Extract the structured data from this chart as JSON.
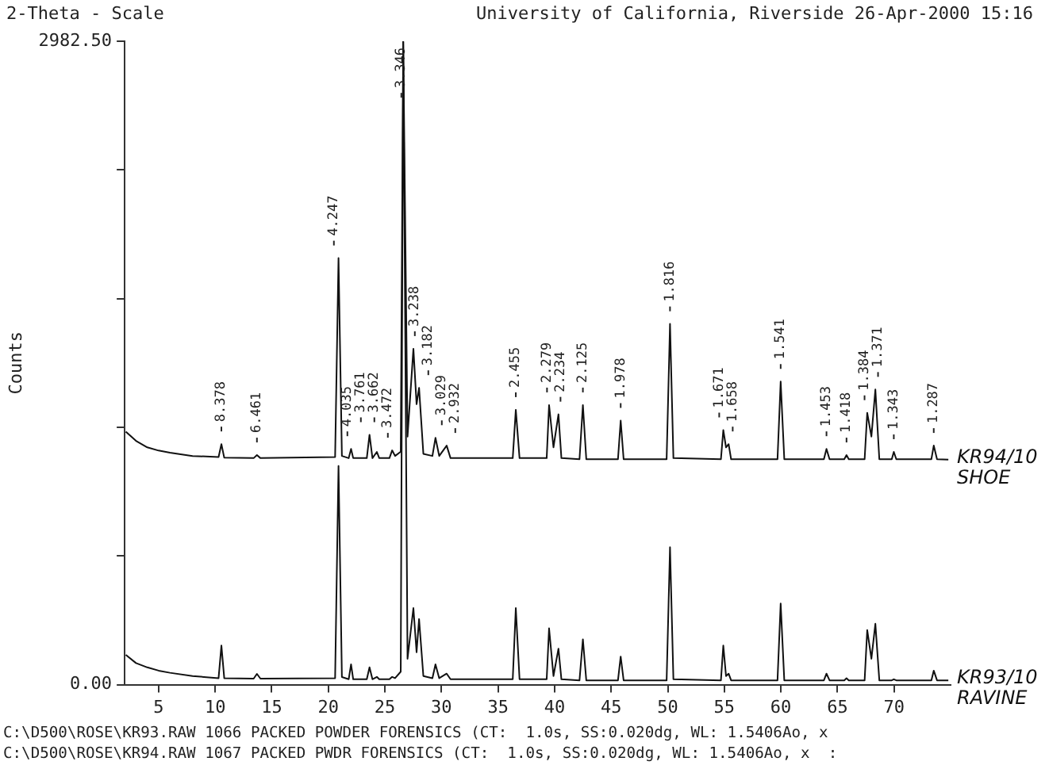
{
  "chart_data": {
    "type": "line",
    "title": "2-Theta - Scale",
    "subtitle": "University of California, Riverside 26-Apr-2000 15:16",
    "ylabel": "Counts",
    "x": [
      2.1,
      3,
      4,
      5,
      6,
      8,
      10.3,
      10.55,
      10.8,
      13.4,
      13.69,
      14,
      20.6,
      20.9,
      21.2,
      21.8,
      22.01,
      22.2,
      23.4,
      23.64,
      23.9,
      24.29,
      24.5,
      25.4,
      25.64,
      25.9,
      26.4,
      26.62,
      27.0,
      27.52,
      27.8,
      28.02,
      28.4,
      29.2,
      29.47,
      29.8,
      30.46,
      30.8,
      36.3,
      36.57,
      36.9,
      39.3,
      39.51,
      39.9,
      40.34,
      40.6,
      42.2,
      42.5,
      42.8,
      45.6,
      45.84,
      46.1,
      49.9,
      50.2,
      50.5,
      54.7,
      54.91,
      55.15,
      55.38,
      55.6,
      59.7,
      59.98,
      60.3,
      63.8,
      64.03,
      64.3,
      65.6,
      65.8,
      66.0,
      67.4,
      67.63,
      68.0,
      68.35,
      68.7,
      69.8,
      69.98,
      70.2,
      73.3,
      73.51,
      73.8,
      74.8
    ],
    "series": [
      {
        "name": "KR94/10 SHOE",
        "color": "#111111",
        "values": [
          1173,
          1130,
          1100,
          1085,
          1075,
          1060,
          1055,
          1115,
          1052,
          1050,
          1064,
          1050,
          1055,
          1977,
          1060,
          1050,
          1093,
          1050,
          1050,
          1158,
          1050,
          1079,
          1050,
          1050,
          1086,
          1060,
          1080,
          2980,
          1150,
          1557,
          1300,
          1376,
          1070,
          1060,
          1144,
          1060,
          1108,
          1050,
          1050,
          1274,
          1050,
          1050,
          1296,
          1100,
          1253,
          1050,
          1045,
          1296,
          1045,
          1045,
          1224,
          1045,
          1045,
          1672,
          1050,
          1045,
          1180,
          1100,
          1115,
          1045,
          1045,
          1405,
          1045,
          1045,
          1093,
          1045,
          1045,
          1064,
          1045,
          1045,
          1260,
          1150,
          1368,
          1045,
          1045,
          1079,
          1045,
          1045,
          1108,
          1045,
          1043
        ]
      },
      {
        "name": "KR93/10 RAVINE",
        "color": "#111111",
        "values": [
          138,
          100,
          80,
          65,
          55,
          40,
          30,
          181,
          30,
          28,
          50,
          28,
          30,
          1014,
          35,
          25,
          94,
          25,
          25,
          80,
          25,
          36,
          25,
          25,
          36,
          30,
          60,
          2980,
          120,
          355,
          150,
          304,
          40,
          30,
          94,
          30,
          51,
          25,
          25,
          355,
          25,
          25,
          261,
          40,
          167,
          25,
          20,
          210,
          20,
          20,
          130,
          20,
          20,
          637,
          25,
          20,
          181,
          40,
          51,
          20,
          20,
          376,
          20,
          20,
          51,
          20,
          20,
          30,
          20,
          20,
          253,
          120,
          282,
          20,
          20,
          25,
          20,
          20,
          65,
          20,
          20
        ]
      }
    ],
    "xlim": [
      2,
      75
    ],
    "xticks": [
      5,
      10,
      15,
      20,
      25,
      30,
      35,
      40,
      45,
      50,
      55,
      60,
      65,
      70
    ],
    "ylim": [
      0,
      2982.5
    ],
    "yticks": [
      {
        "value": 0,
        "label": "0.00"
      },
      {
        "value": 596.5,
        "label": null
      },
      {
        "value": 1193,
        "label": null
      },
      {
        "value": 1789.5,
        "label": null
      },
      {
        "value": 2386,
        "label": null
      },
      {
        "value": 2982.5,
        "label": "2982.50"
      }
    ],
    "marker": "none",
    "line_style": "solid",
    "annotations": [
      {
        "text": "8.378",
        "x": 10.55,
        "y": 1115
      },
      {
        "text": "6.461",
        "x": 13.69,
        "y": 1064
      },
      {
        "text": "4.247",
        "x": 20.9,
        "y": 1977
      },
      {
        "text": "4.035",
        "x": 22.01,
        "y": 1093
      },
      {
        "text": "3.761",
        "x": 23.64,
        "y": 1158
      },
      {
        "text": "3.662",
        "x": 24.29,
        "y": 1079
      },
      {
        "text": "3.472",
        "x": 25.64,
        "y": 1086
      },
      {
        "text": "3.346",
        "x": 26.62,
        "y": 2980
      },
      {
        "text": "3.238",
        "x": 27.52,
        "y": 1557
      },
      {
        "text": "3.182",
        "x": 28.02,
        "y": 1376
      },
      {
        "text": "3.029",
        "x": 29.47,
        "y": 1144
      },
      {
        "text": "2.932",
        "x": 30.46,
        "y": 1108
      },
      {
        "text": "2.455",
        "x": 36.57,
        "y": 1274
      },
      {
        "text": "2.279",
        "x": 39.51,
        "y": 1296
      },
      {
        "text": "2.234",
        "x": 40.34,
        "y": 1253
      },
      {
        "text": "2.125",
        "x": 42.5,
        "y": 1296
      },
      {
        "text": "1.978",
        "x": 45.84,
        "y": 1224
      },
      {
        "text": "1.816",
        "x": 50.2,
        "y": 1672
      },
      {
        "text": "1.671",
        "x": 54.91,
        "y": 1180
      },
      {
        "text": "1.658",
        "x": 55.38,
        "y": 1115
      },
      {
        "text": "1.541",
        "x": 59.98,
        "y": 1405
      },
      {
        "text": "1.453",
        "x": 64.03,
        "y": 1093
      },
      {
        "text": "1.418",
        "x": 65.8,
        "y": 1064
      },
      {
        "text": "1.384",
        "x": 67.63,
        "y": 1260
      },
      {
        "text": "1.371",
        "x": 68.35,
        "y": 1368
      },
      {
        "text": "1.343",
        "x": 69.98,
        "y": 1079
      },
      {
        "text": "1.287",
        "x": 73.51,
        "y": 1108
      },
      "C:\\D500\\ROSE\\KR93.RAW 1066 PACKED POWDER FORENSICS (CT:  1.0s, SS:0.020dg, WL: 1.5406Ao, x",
      "C:\\D500\\ROSE\\KR94.RAW 1067 PACKED PWDR FORENSICS (CT:  1.0s, SS:0.020dg, WL: 1.5406Ao, x  :"
    ]
  }
}
